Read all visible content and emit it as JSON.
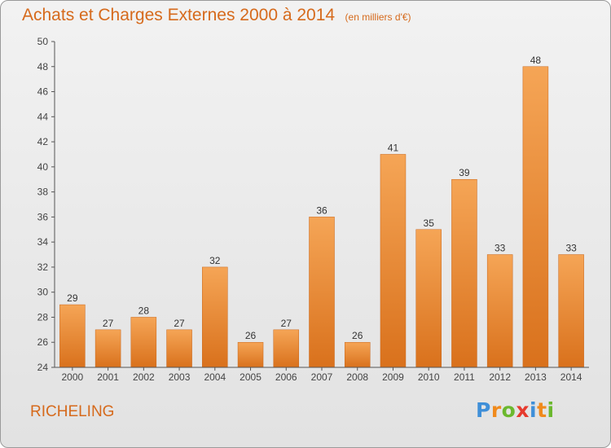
{
  "title": "Achats et Charges Externes 2000 à 2014",
  "subtitle": "(en milliers d'€)",
  "place": "RICHELING",
  "logo": {
    "letters": [
      "P",
      "r",
      "o",
      "x",
      "i",
      "t",
      "i"
    ],
    "colors": [
      "#3f8fd8",
      "#f08a1c",
      "#6bb82e",
      "#e63a2e",
      "#3f8fd8",
      "#f08a1c",
      "#6bb82e"
    ]
  },
  "chart_data": {
    "type": "bar",
    "title": "Achats et Charges Externes 2000 à 2014",
    "subtitle": "(en milliers d'€)",
    "categories": [
      "2000",
      "2001",
      "2002",
      "2003",
      "2004",
      "2005",
      "2006",
      "2007",
      "2008",
      "2009",
      "2010",
      "2011",
      "2012",
      "2013",
      "2014"
    ],
    "values": [
      29,
      27,
      28,
      27,
      32,
      26,
      27,
      36,
      26,
      41,
      35,
      39,
      33,
      48,
      33
    ],
    "ylim": [
      24,
      50
    ],
    "yticks": [
      24,
      26,
      28,
      30,
      32,
      34,
      36,
      38,
      40,
      42,
      44,
      46,
      48,
      50
    ],
    "xlabel": "",
    "ylabel": "",
    "grid": false,
    "bar_color": "#ef8a32"
  }
}
